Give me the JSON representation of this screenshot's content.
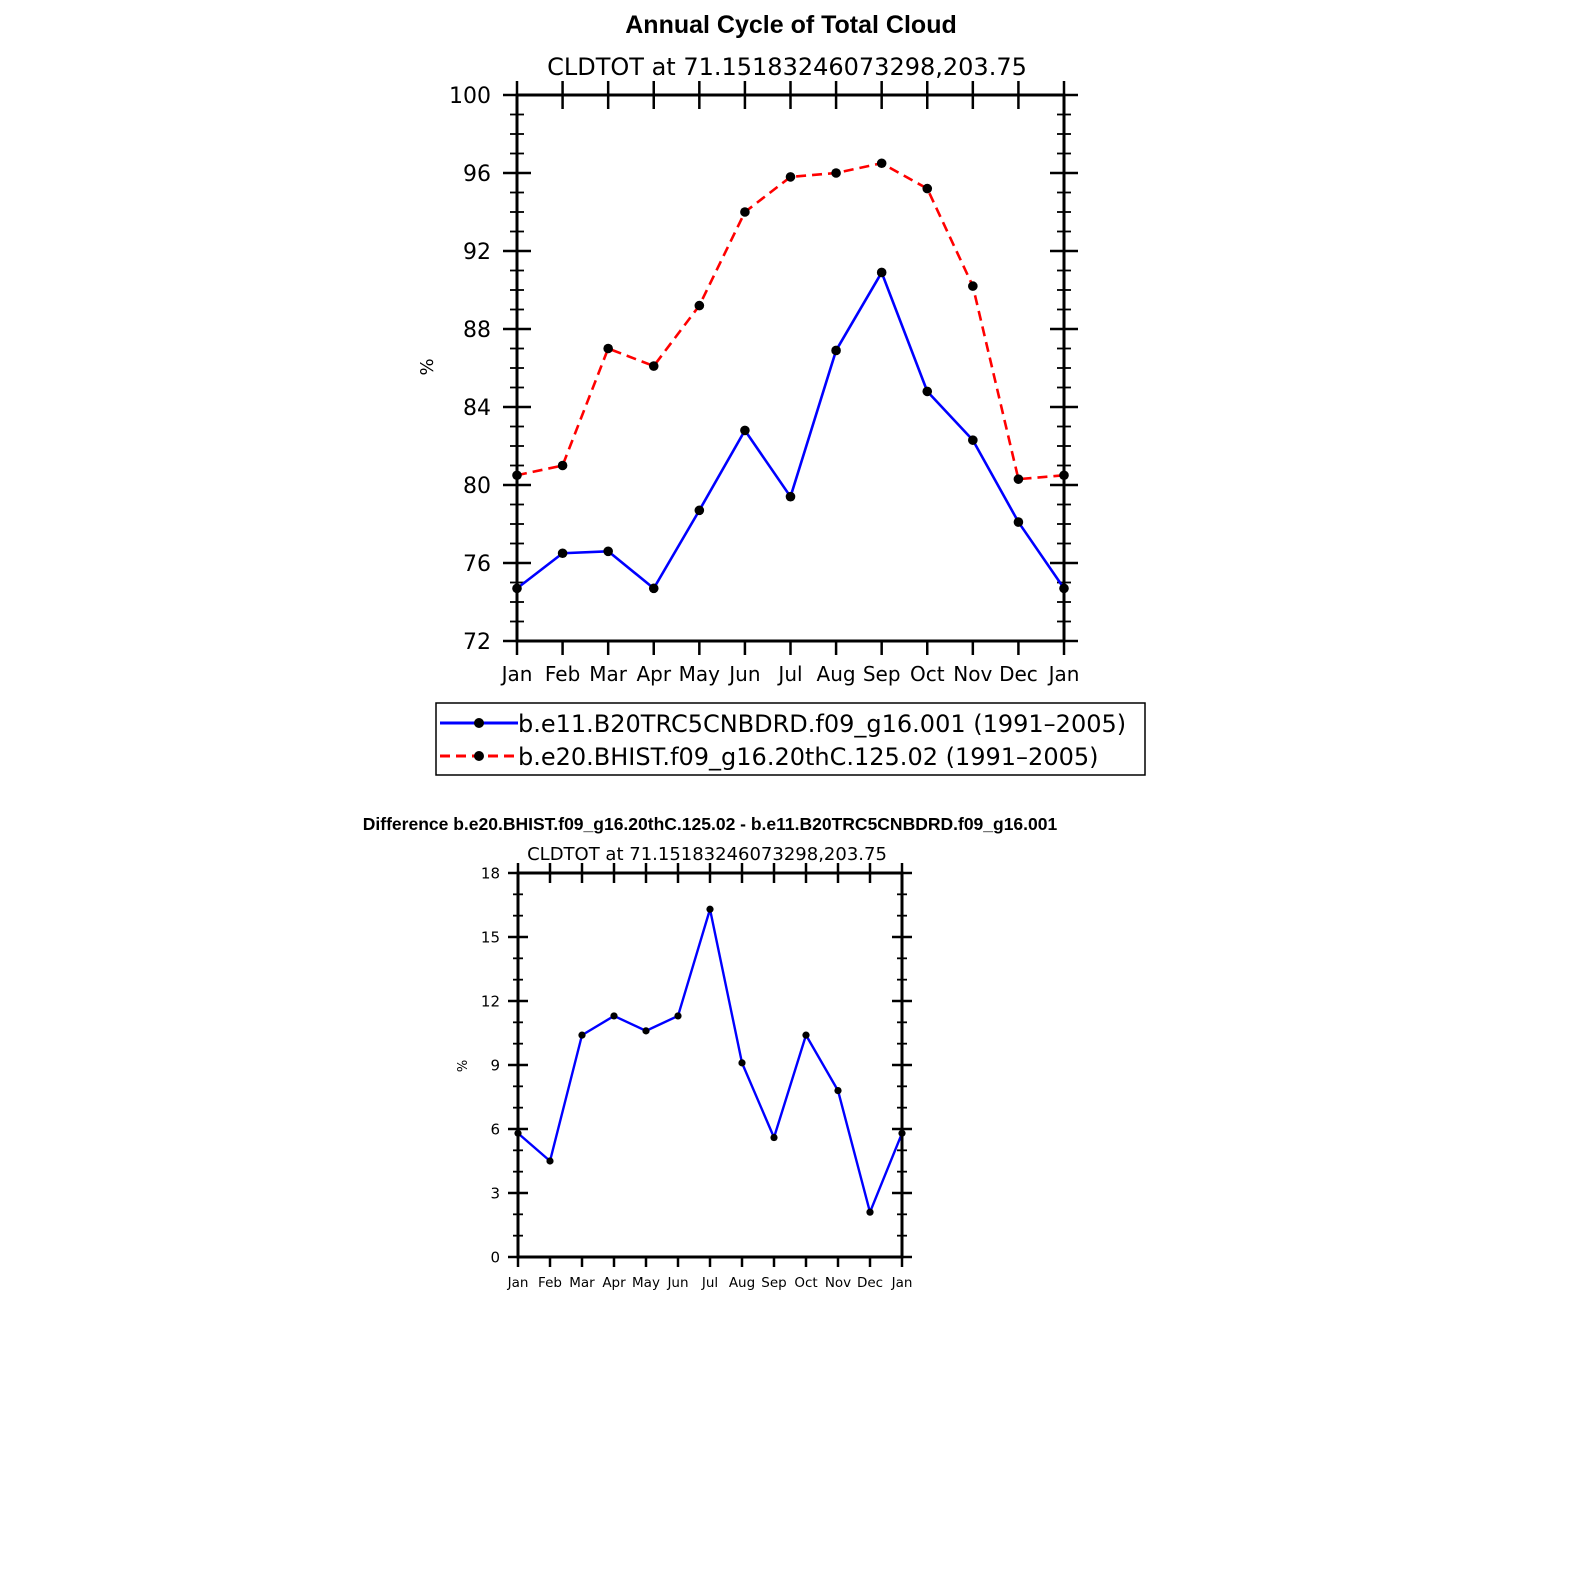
{
  "chart_data": [
    {
      "type": "line",
      "title": "Annual Cycle of Total Cloud",
      "subtitle": "CLDTOT at 71.15183246073298,203.75",
      "xlabel": "",
      "ylabel": "%",
      "categories": [
        "Jan",
        "Feb",
        "Mar",
        "Apr",
        "May",
        "Jun",
        "Jul",
        "Aug",
        "Sep",
        "Oct",
        "Nov",
        "Dec",
        "Jan"
      ],
      "ylim": [
        72,
        100
      ],
      "yticks": [
        72,
        76,
        80,
        84,
        88,
        92,
        96,
        100
      ],
      "series": [
        {
          "name": "b.e11.B20TRC5CNBDRD.f09_g16.001 (1991–2005)",
          "color": "#0000ff",
          "dash": "solid",
          "values": [
            74.7,
            76.5,
            76.6,
            74.7,
            78.7,
            82.8,
            79.4,
            86.9,
            90.9,
            84.8,
            82.3,
            78.1,
            74.7
          ]
        },
        {
          "name": "b.e20.BHIST.f09_g16.20thC.125.02 (1991–2005)",
          "color": "#ff0000",
          "dash": "dashed",
          "values": [
            80.5,
            81.0,
            87.0,
            86.1,
            89.2,
            94.0,
            95.8,
            96.0,
            96.5,
            95.2,
            90.2,
            80.3,
            80.5
          ]
        }
      ],
      "legend": "below"
    },
    {
      "type": "line",
      "title": "Difference b.e20.BHIST.f09_g16.20thC.125.02 - b.e11.B20TRC5CNBDRD.f09_g16.001",
      "subtitle": "CLDTOT at 71.15183246073298,203.75",
      "xlabel": "",
      "ylabel": "%",
      "categories": [
        "Jan",
        "Feb",
        "Mar",
        "Apr",
        "May",
        "Jun",
        "Jul",
        "Aug",
        "Sep",
        "Oct",
        "Nov",
        "Dec",
        "Jan"
      ],
      "ylim": [
        0,
        18
      ],
      "yticks": [
        0,
        3,
        6,
        9,
        12,
        15,
        18
      ],
      "series": [
        {
          "color": "#0000ff",
          "dash": "solid",
          "values": [
            5.8,
            4.5,
            10.4,
            11.3,
            10.6,
            11.3,
            16.3,
            9.1,
            5.6,
            10.4,
            7.8,
            2.1,
            5.8
          ]
        }
      ]
    }
  ]
}
